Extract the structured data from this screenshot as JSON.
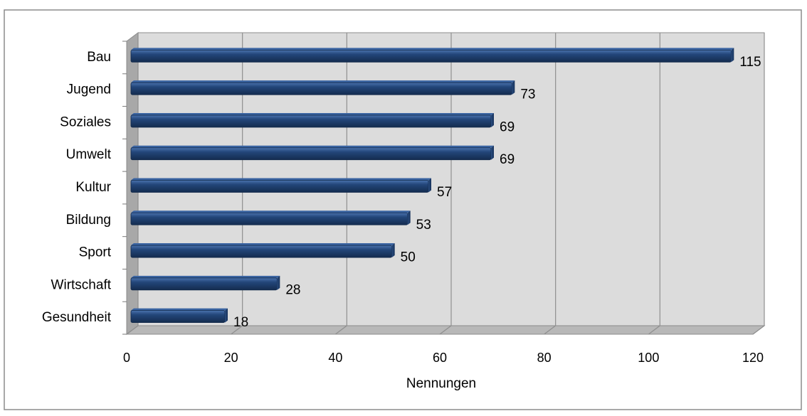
{
  "chart_data": {
    "type": "bar",
    "orientation": "horizontal",
    "categories": [
      "Bau",
      "Jugend",
      "Soziales",
      "Umwelt",
      "Kultur",
      "Bildung",
      "Sport",
      "Wirtschaft",
      "Gesundheit"
    ],
    "values": [
      115,
      73,
      69,
      69,
      57,
      53,
      50,
      28,
      18
    ],
    "value_labels": [
      "115",
      "73",
      "69",
      "69",
      "57",
      "53",
      "50",
      "28",
      "18"
    ],
    "title": "",
    "xlabel": "Nennungen",
    "ylabel": "",
    "xlim": [
      0,
      120
    ],
    "x_ticks": [
      0,
      20,
      40,
      60,
      80,
      100,
      120
    ],
    "x_tick_labels": [
      "0",
      "20",
      "40",
      "60",
      "80",
      "100",
      "120"
    ],
    "grid": true,
    "legend": "none",
    "style": "3d",
    "colors": {
      "bar": "#1f3f6e",
      "bar_light": "#3a64a2",
      "bar_dark": "#132a4b",
      "plot_background": "#dcdcdc",
      "wall_side": "#a8a8a8",
      "floor": "#b8b8b8",
      "gridline": "#8f8f8f",
      "frame": "#8c8c8c"
    }
  }
}
